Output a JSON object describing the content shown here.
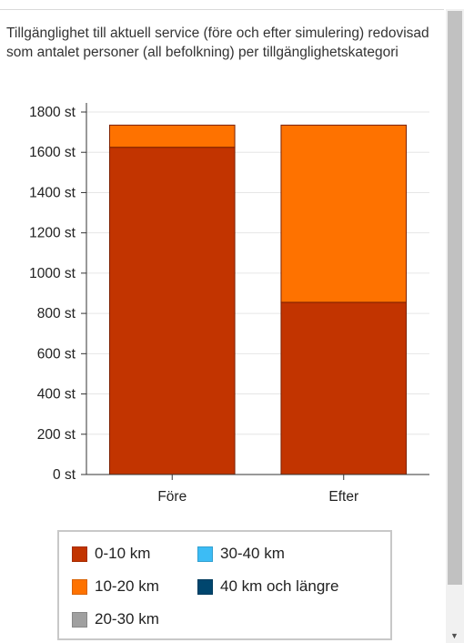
{
  "chart_data": {
    "type": "bar",
    "stacked": true,
    "title": "Tillgänglighet till aktuell service (före och efter simulering) redovisad som antalet personer (all befolkning) per tillgänglighetskategori",
    "categories": [
      "Före",
      "Efter"
    ],
    "series": [
      {
        "name": "0-10 km",
        "color": "#c23400",
        "values": [
          1625,
          855
        ]
      },
      {
        "name": "10-20 km",
        "color": "#fe7200",
        "values": [
          110,
          880
        ]
      },
      {
        "name": "20-30 km",
        "color": "#a0a0a0",
        "values": [
          0,
          0
        ]
      },
      {
        "name": "30-40 km",
        "color": "#3cbcf5",
        "values": [
          0,
          0
        ]
      },
      {
        "name": "40 km och längre",
        "color": "#00466e",
        "values": [
          0,
          0
        ]
      }
    ],
    "ylim": [
      0,
      1800
    ],
    "y_ticks": [
      "0 st",
      "200 st",
      "400 st",
      "600 st",
      "800 st",
      "1000 st",
      "1200 st",
      "1400 st",
      "1600 st",
      "1800 st"
    ],
    "grid": true,
    "legend_position": "bottom"
  }
}
